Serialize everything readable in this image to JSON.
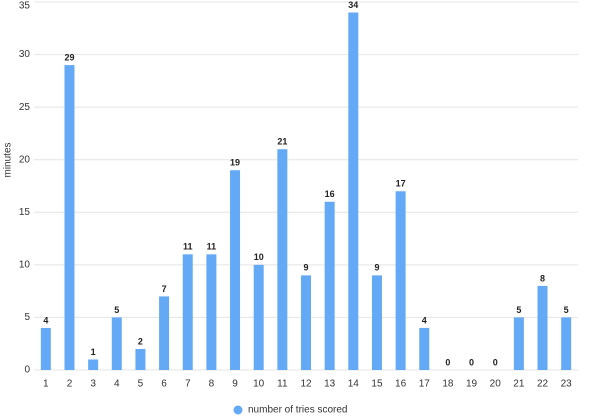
{
  "chart_data": {
    "type": "bar",
    "y_label": "minutes",
    "categories": [
      "1",
      "2",
      "3",
      "4",
      "5",
      "6",
      "7",
      "8",
      "9",
      "10",
      "11",
      "12",
      "13",
      "14",
      "15",
      "16",
      "17",
      "18",
      "19",
      "20",
      "21",
      "22",
      "23"
    ],
    "series": [
      {
        "name": "number of tries scored",
        "color": "#64a9f5",
        "values": [
          4,
          29,
          1,
          5,
          2,
          7,
          11,
          11,
          19,
          10,
          21,
          9,
          16,
          34,
          9,
          17,
          4,
          0,
          0,
          0,
          5,
          8,
          5
        ]
      }
    ],
    "ylim": [
      0,
      35
    ],
    "yticks": [
      0,
      5,
      10,
      15,
      20,
      25,
      30,
      35
    ],
    "grid": true,
    "legend": "bottom"
  }
}
